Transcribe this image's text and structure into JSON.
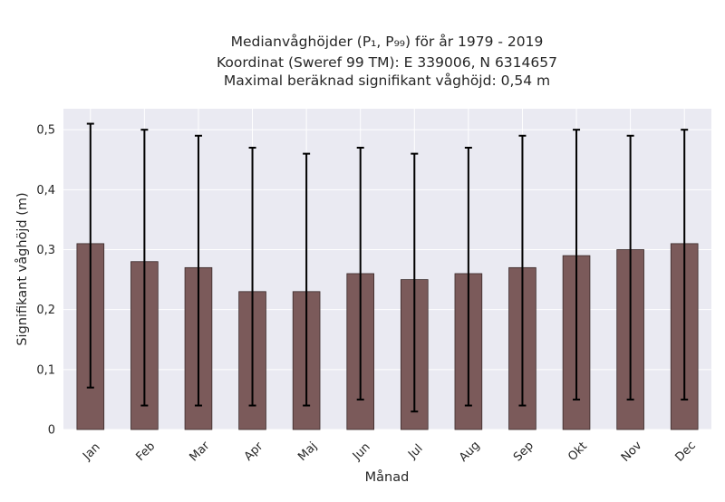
{
  "chart_data": {
    "type": "bar",
    "title_lines": [
      "Medianvåghöjder (P₁, P₉₉) för år 1979 - 2019",
      "Koordinat (Sweref 99 TM): E 339006, N 6314657",
      "Maximal beräknad signifikant våghöjd: 0,54 m"
    ],
    "xlabel": "Månad",
    "ylabel": "Signifikant våghöjd (m)",
    "categories": [
      "Jan",
      "Feb",
      "Mar",
      "Apr",
      "Maj",
      "Jun",
      "Jul",
      "Aug",
      "Sep",
      "Okt",
      "Nov",
      "Dec"
    ],
    "values": [
      0.31,
      0.28,
      0.27,
      0.23,
      0.23,
      0.26,
      0.25,
      0.26,
      0.27,
      0.29,
      0.3,
      0.31
    ],
    "error_low": [
      0.07,
      0.04,
      0.04,
      0.04,
      0.04,
      0.05,
      0.03,
      0.04,
      0.04,
      0.05,
      0.05,
      0.05
    ],
    "error_high": [
      0.51,
      0.5,
      0.49,
      0.47,
      0.46,
      0.47,
      0.46,
      0.47,
      0.49,
      0.5,
      0.49,
      0.5
    ],
    "ylim": [
      0,
      0.535
    ],
    "yticks": [
      0,
      0.1,
      0.2,
      0.3,
      0.4,
      0.5
    ],
    "ytick_labels": [
      "0",
      "0,1",
      "0,2",
      "0,3",
      "0,4",
      "0,5"
    ],
    "grid": true,
    "bar_color": "#7b5a5a",
    "errorbar_color": "#000000",
    "background_color": "#eaeaf2"
  }
}
